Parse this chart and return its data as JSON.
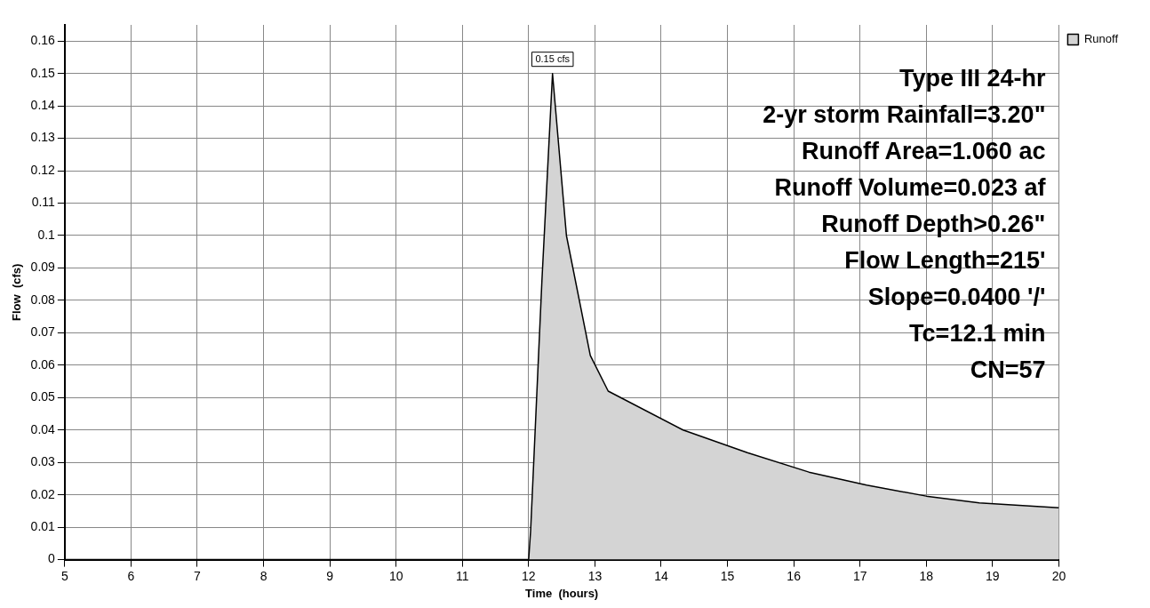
{
  "chart_data": {
    "type": "area",
    "xlabel": "Time  (hours)",
    "ylabel": "Flow  (cfs)",
    "x": [
      5,
      12,
      12.03,
      12.2,
      12.36,
      12.57,
      12.93,
      13.2,
      14.33,
      15.3,
      16.23,
      17.1,
      18,
      18.8,
      20
    ],
    "series": [
      {
        "name": "Runoff",
        "color": "#d4d4d4",
        "values": [
          0,
          0,
          0.009,
          0.086,
          0.15,
          0.1,
          0.063,
          0.052,
          0.04,
          0.033,
          0.027,
          0.023,
          0.0196,
          0.0175,
          0.016
        ]
      }
    ],
    "xlim": [
      5,
      20
    ],
    "xticks": [
      5,
      6,
      7,
      8,
      9,
      10,
      11,
      12,
      13,
      14,
      15,
      16,
      17,
      18,
      19,
      20
    ],
    "ylim": [
      0,
      0.165
    ],
    "yticks": [
      0,
      0.01,
      0.02,
      0.03,
      0.04,
      0.05,
      0.06,
      0.07,
      0.08,
      0.09,
      0.1,
      0.11,
      0.12,
      0.13,
      0.14,
      0.15,
      0.16
    ],
    "grid": true,
    "legend": "top right",
    "marker": "none",
    "annotations": [
      {
        "text": "0.15 cfs",
        "x": 12.36,
        "y": 0.15
      },
      "Type III 24-hr",
      "2-yr storm Rainfall=3.20\"",
      "Runoff Area=1.060 ac",
      "Runoff Volume=0.023 af",
      "Runoff Depth>0.26\"",
      "Flow Length=215'",
      "Slope=0.0400 '/'",
      "Tc=12.1 min",
      "CN=57"
    ]
  }
}
